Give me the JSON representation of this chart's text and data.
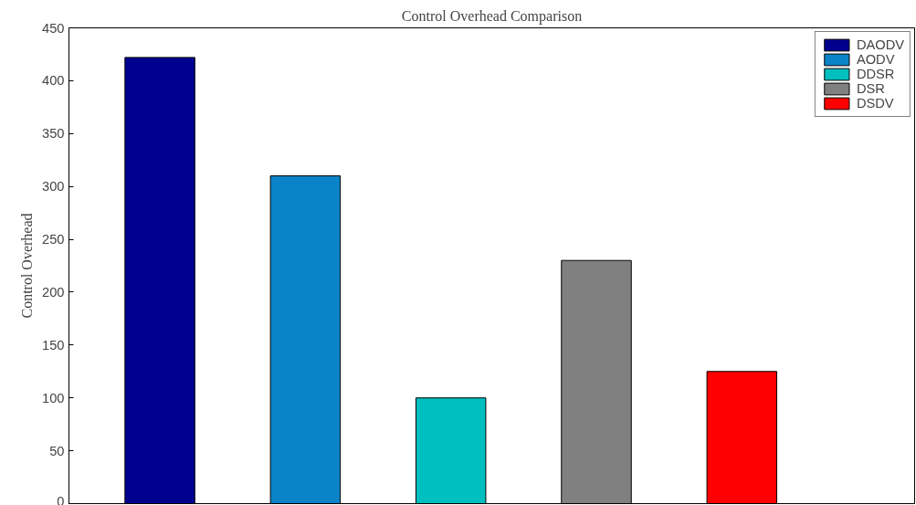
{
  "chart_data": {
    "type": "bar",
    "title": "Control Overhead Comparison",
    "ylabel": "Control Overhead",
    "categories": [
      null
    ],
    "series": [
      {
        "name": "DAODV",
        "color": "#00008f",
        "values": [
          422
        ]
      },
      {
        "name": "AODV",
        "color": "#0a83c8",
        "values": [
          310
        ]
      },
      {
        "name": "DDSR",
        "color": "#00bfbf",
        "values": [
          100
        ]
      },
      {
        "name": "DSR",
        "color": "#808080",
        "values": [
          230
        ]
      },
      {
        "name": "DSDV",
        "color": "#ff0000",
        "values": [
          125
        ]
      }
    ],
    "ylim": [
      0,
      450
    ],
    "yticks": [
      0,
      50,
      100,
      150,
      200,
      250,
      300,
      350,
      400,
      450
    ],
    "grid": false,
    "legend": "top right"
  }
}
